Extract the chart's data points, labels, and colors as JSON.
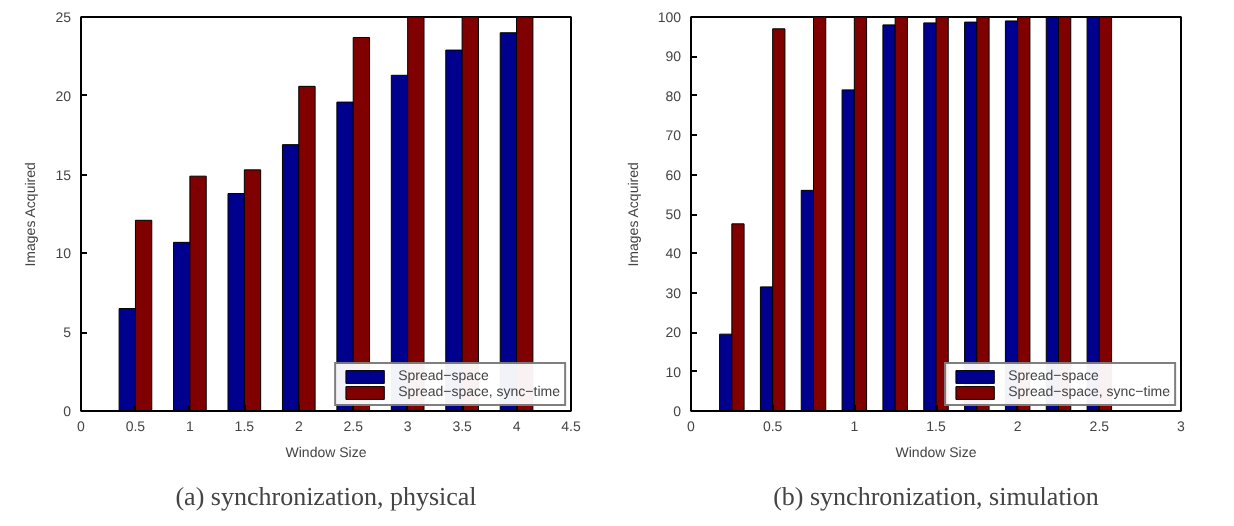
{
  "chart_data": [
    {
      "type": "bar",
      "title": "(a) synchronization, physical",
      "xlabel": "Window Size",
      "ylabel": "Images Acquired",
      "x": [
        0.5,
        1,
        1.5,
        2,
        2.5,
        3,
        3.5,
        4
      ],
      "series": [
        {
          "name": "Spread−space",
          "color": "#00008f",
          "values": [
            6.5,
            10.7,
            13.8,
            16.9,
            19.6,
            21.3,
            22.9,
            24
          ]
        },
        {
          "name": "Spread−space, sync−time",
          "color": "#800000",
          "values": [
            12.1,
            14.9,
            15.3,
            20.6,
            23.7,
            25,
            25,
            25
          ]
        }
      ],
      "xlim": [
        0,
        4.5
      ],
      "xticks": [
        0,
        0.5,
        1,
        1.5,
        2,
        2.5,
        3,
        3.5,
        4,
        4.5
      ],
      "ylim": [
        0,
        25
      ],
      "yticks": [
        0,
        5,
        10,
        15,
        20,
        25
      ],
      "grid": false,
      "legend": "bottom right"
    },
    {
      "type": "bar",
      "title": "(b) synchronization, simulation",
      "xlabel": "Window Size",
      "ylabel": "Images Acquired",
      "x": [
        0.25,
        0.5,
        0.75,
        1,
        1.25,
        1.5,
        1.75,
        2,
        2.25,
        2.5
      ],
      "series": [
        {
          "name": "Spread−space",
          "color": "#00008f",
          "values": [
            19.5,
            31.5,
            56,
            81.5,
            98,
            98.5,
            98.7,
            99,
            100,
            100
          ]
        },
        {
          "name": "Spread−space, sync−time",
          "color": "#800000",
          "values": [
            47.5,
            97,
            100,
            100,
            100,
            100,
            100,
            100,
            100,
            100
          ]
        }
      ],
      "xlim": [
        0,
        3
      ],
      "xticks": [
        0,
        0.5,
        1,
        1.5,
        2,
        2.5,
        3
      ],
      "ylim": [
        0,
        100
      ],
      "yticks": [
        0,
        10,
        20,
        30,
        40,
        50,
        60,
        70,
        80,
        90,
        100
      ],
      "grid": false,
      "legend": "bottom right"
    }
  ]
}
